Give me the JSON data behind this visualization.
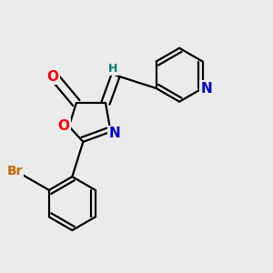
{
  "bg_color": "#ebebeb",
  "bond_color": "#000000",
  "bond_width": 1.6,
  "atom_colors": {
    "O_carbonyl": "#ff0000",
    "O_ring": "#ff0000",
    "N": "#0000cc",
    "Br": "#cc6600",
    "C": "#000000",
    "H": "#008080"
  },
  "font_size_atoms": 11,
  "font_size_H": 9,
  "font_size_Br": 10
}
